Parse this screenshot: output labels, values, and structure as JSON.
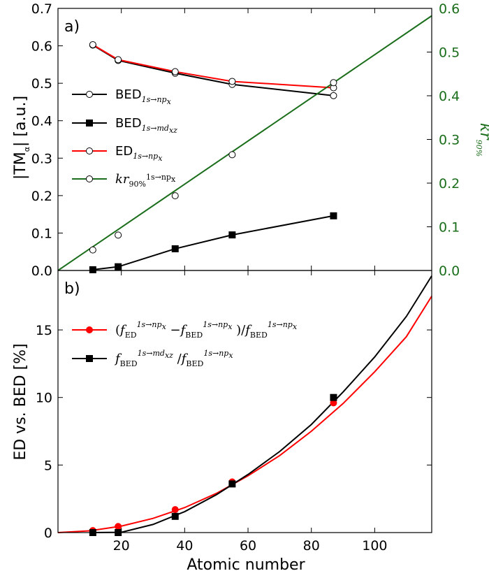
{
  "chart_data": [
    {
      "panel": "a)",
      "type": "line",
      "xlim": [
        0,
        118
      ],
      "ylim": [
        0,
        0.7
      ],
      "ylim_right": [
        0,
        0.6
      ],
      "yticks": [
        "0.0",
        "0.1",
        "0.2",
        "0.3",
        "0.4",
        "0.5",
        "0.6",
        "0.7"
      ],
      "yticks_right": [
        "0.0",
        "0.1",
        "0.2",
        "0.3",
        "0.4",
        "0.5",
        "0.6"
      ],
      "ylabel": "|TM",
      "ylabel_sub": "α",
      "ylabel_tail": "| [a.u.]",
      "ylabel_right": "kr",
      "ylabel_right_sub": "90%",
      "legend_location": "center-left",
      "series": [
        {
          "name": "BED",
          "sub": "1s→np",
          "subsub": "x",
          "color": "#000000",
          "marker": "open-circle",
          "axis": "left",
          "x": [
            11,
            19,
            37,
            55,
            87
          ],
          "y": [
            0.602,
            0.561,
            0.527,
            0.497,
            0.467
          ]
        },
        {
          "name": "BED",
          "sub": "1s→md",
          "subsub": "xz",
          "color": "#000000",
          "marker": "filled-square",
          "axis": "left",
          "x": [
            11,
            19,
            37,
            55,
            87
          ],
          "y": [
            0.002,
            0.01,
            0.058,
            0.095,
            0.146
          ]
        },
        {
          "name": "ED",
          "sub": "1s→np",
          "subsub": "x",
          "color": "#ff0000",
          "marker": "open-circle",
          "axis": "left",
          "x": [
            11,
            19,
            37,
            55,
            87
          ],
          "y": [
            0.603,
            0.563,
            0.531,
            0.505,
            0.488
          ]
        },
        {
          "name": "kr",
          "sub": "90%",
          "supsub": "1s→np",
          "supsubsub": "x",
          "color": "#1b6e1b",
          "marker": "open-circle",
          "axis": "right",
          "x": [
            0,
            118
          ],
          "y": [
            0.0,
            0.583
          ],
          "points_x": [
            11,
            19,
            37,
            55,
            87
          ],
          "points_y": [
            0.047,
            0.081,
            0.171,
            0.265,
            0.43
          ]
        }
      ]
    },
    {
      "panel": "b)",
      "type": "line",
      "xlim": [
        0,
        118
      ],
      "ylim": [
        0,
        19.4
      ],
      "xticks": [
        "20",
        "40",
        "60",
        "80",
        "100"
      ],
      "yticks": [
        "0",
        "5",
        "10",
        "15"
      ],
      "xlabel": "Atomic number",
      "ylabel": "ED vs. BED [%]",
      "legend_location": "upper-left",
      "series": [
        {
          "color": "#ff0000",
          "marker": "filled-circle",
          "legend": {
            "open": "(",
            "f": "f",
            "sub1": "ED",
            "sup1": "1s→np",
            "supsub1": "x",
            "minus": "−",
            "sub2": "BED",
            "sup2": "1s→np",
            "supsub2": "x",
            "close": ")/",
            "sub3": "BED",
            "sup3": "1s→np",
            "supsub3": "x"
          },
          "x": [
            11,
            19,
            37,
            55,
            87
          ],
          "y": [
            0.15,
            0.45,
            1.7,
            3.75,
            9.6
          ],
          "curve_x": [
            0,
            10,
            20,
            30,
            40,
            50,
            60,
            70,
            80,
            90,
            100,
            110,
            118
          ],
          "curve_y": [
            0.0,
            0.13,
            0.48,
            1.05,
            1.85,
            2.9,
            4.2,
            5.7,
            7.5,
            9.55,
            11.9,
            14.5,
            17.5
          ]
        },
        {
          "color": "#000000",
          "marker": "filled-square",
          "legend": {
            "f": "f",
            "sub1": "BED",
            "sup1": "1s→md",
            "supsub1": "xz",
            "slash": "/",
            "sub2": "BED",
            "sup2": "1s→np",
            "supsub2": "x"
          },
          "x": [
            11,
            19,
            37,
            55,
            87
          ],
          "y": [
            0.0,
            0.0,
            1.2,
            3.6,
            10.0
          ],
          "curve_x": [
            10,
            20,
            30,
            40,
            50,
            60,
            70,
            80,
            90,
            100,
            110,
            118
          ],
          "curve_y": [
            0.0,
            0.02,
            0.6,
            1.55,
            2.8,
            4.3,
            6.0,
            8.0,
            10.4,
            13.0,
            16.0,
            19.0
          ]
        }
      ]
    }
  ],
  "colors": {
    "red": "#ff0000",
    "black": "#000000",
    "green": "#1b6e1b"
  }
}
